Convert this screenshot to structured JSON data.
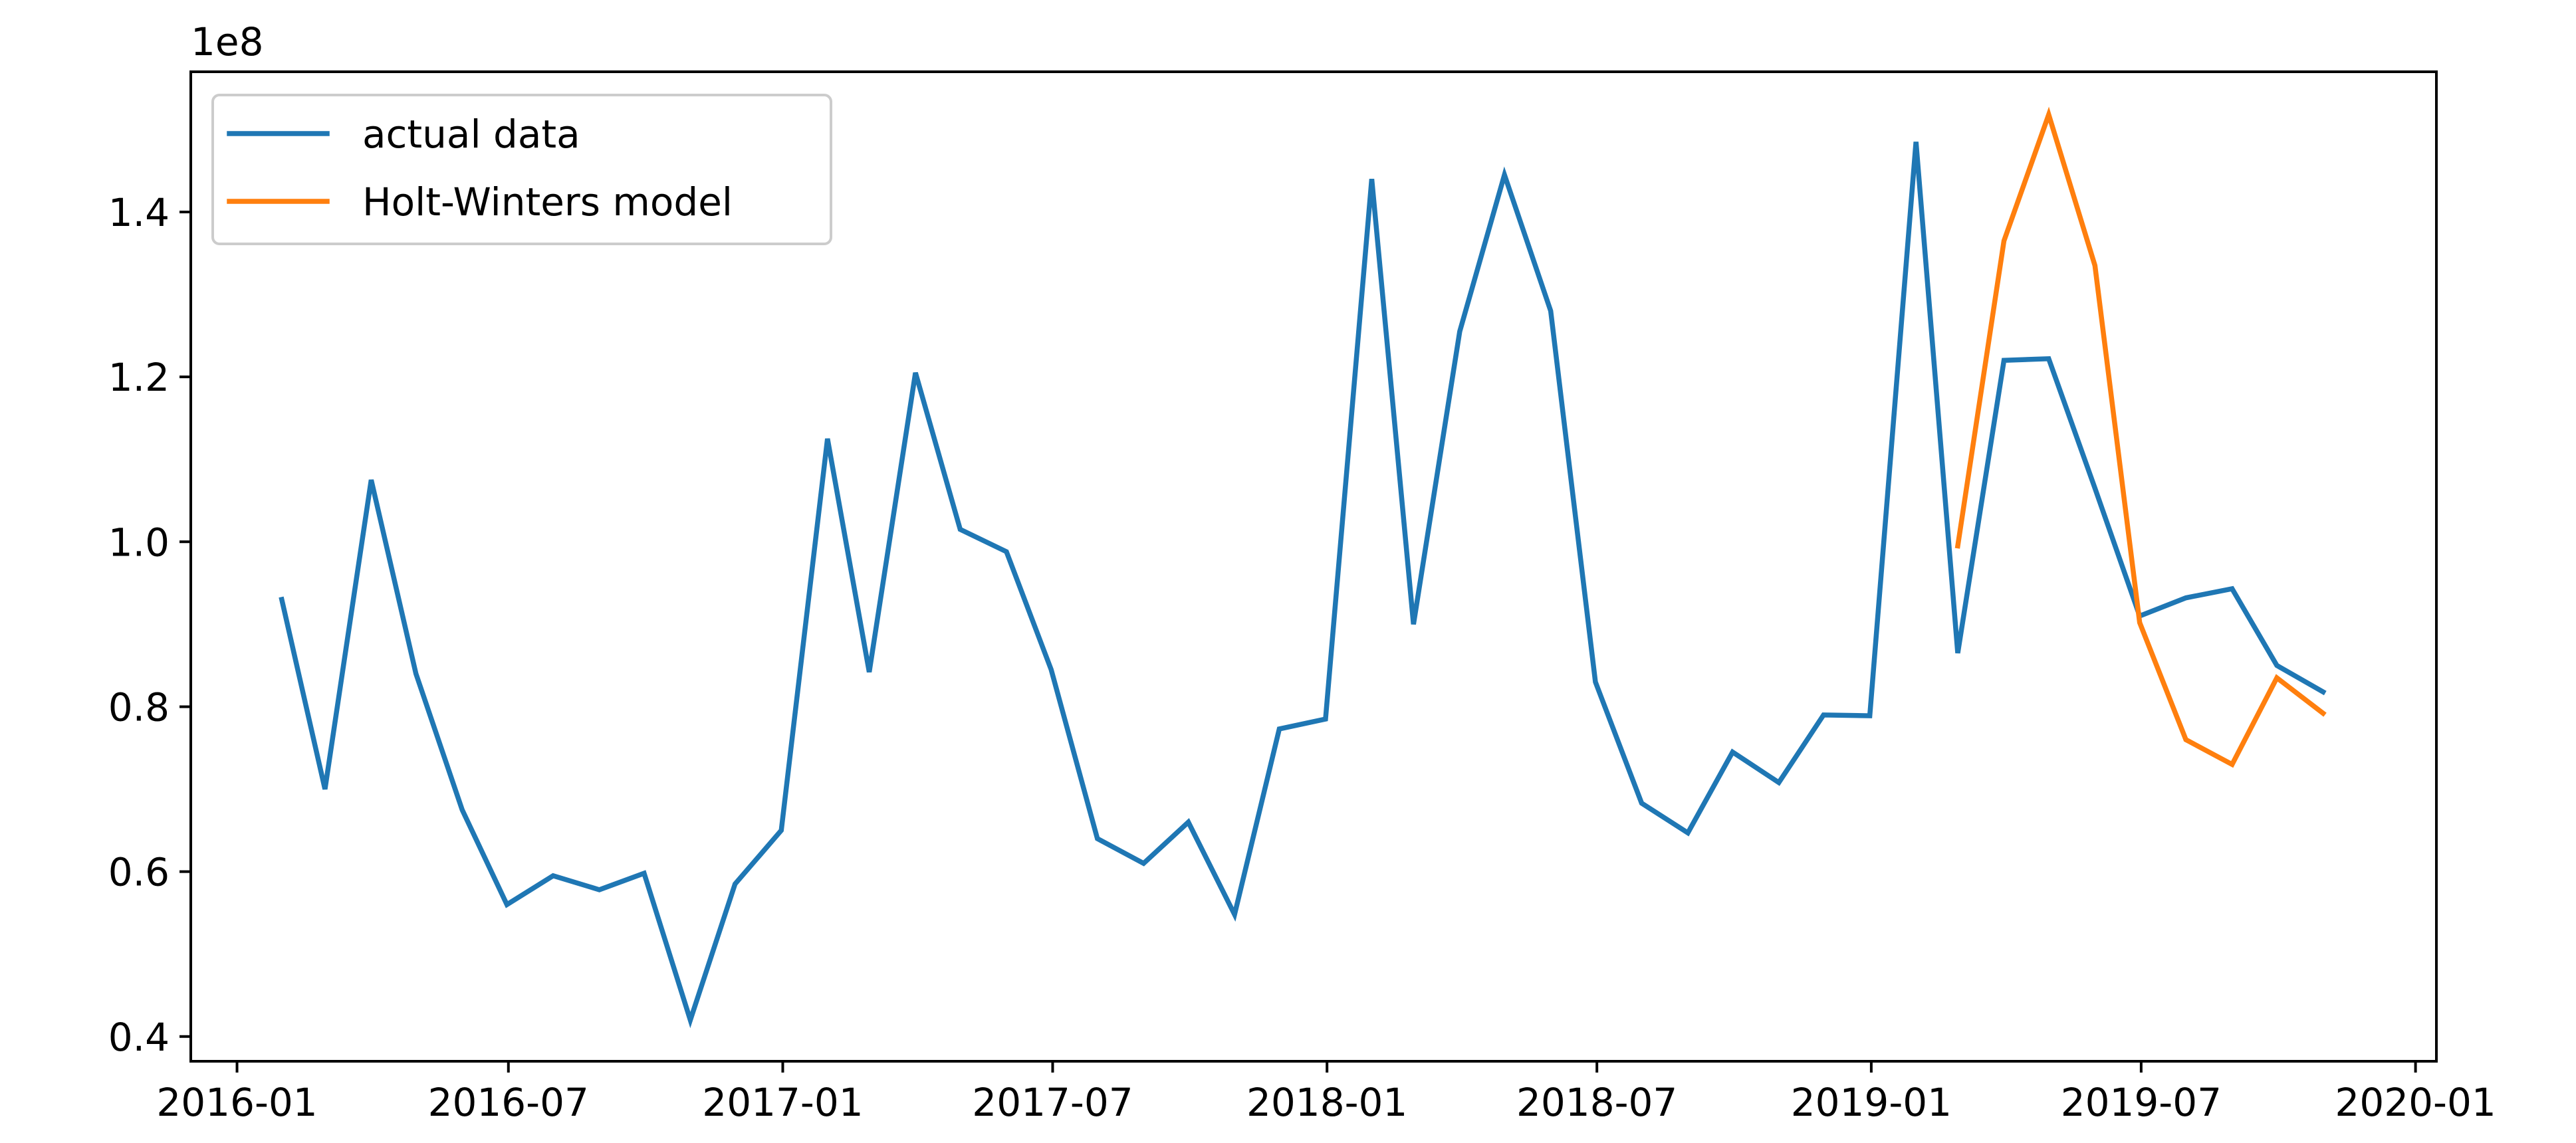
{
  "chart_data": {
    "type": "line",
    "xaxis": {
      "type": "date",
      "range": [
        "2015-12-01",
        "2020-01-15"
      ],
      "ticks": [
        "2016-01-01",
        "2016-07-01",
        "2017-01-01",
        "2017-07-01",
        "2018-01-01",
        "2018-07-01",
        "2019-01-01",
        "2019-07-01",
        "2020-01-01"
      ],
      "tick_labels": [
        "2016-01",
        "2016-07",
        "2017-01",
        "2017-07",
        "2018-01",
        "2018-07",
        "2019-01",
        "2019-07",
        "2020-01"
      ]
    },
    "yaxis": {
      "range": [
        0.37,
        1.57
      ],
      "ticks": [
        0.4,
        0.6,
        0.8,
        1.0,
        1.2,
        1.4
      ],
      "tick_labels": [
        "0.4",
        "0.6",
        "0.8",
        "1.0",
        "1.2",
        "1.4"
      ],
      "offset_label": "1e8"
    },
    "grid": false,
    "legend": {
      "position": "top-left"
    },
    "series": [
      {
        "name": "actual data",
        "color": "#1f77b4",
        "x": [
          "2016-01-31",
          "2016-02-29",
          "2016-03-31",
          "2016-04-30",
          "2016-05-31",
          "2016-06-30",
          "2016-07-31",
          "2016-08-31",
          "2016-09-30",
          "2016-10-31",
          "2016-11-30",
          "2016-12-31",
          "2017-01-31",
          "2017-02-28",
          "2017-03-31",
          "2017-04-30",
          "2017-05-31",
          "2017-06-30",
          "2017-07-31",
          "2017-08-31",
          "2017-09-30",
          "2017-10-31",
          "2017-11-30",
          "2017-12-31",
          "2018-01-31",
          "2018-02-28",
          "2018-03-31",
          "2018-04-30",
          "2018-05-31",
          "2018-06-30",
          "2018-07-31",
          "2018-08-31",
          "2018-09-30",
          "2018-10-31",
          "2018-11-30",
          "2018-12-31",
          "2019-01-31",
          "2019-02-28",
          "2019-03-31",
          "2019-04-30",
          "2019-05-31",
          "2019-06-30",
          "2019-07-31",
          "2019-08-31",
          "2019-09-30",
          "2019-10-31"
        ],
        "values": [
          0.93,
          0.7,
          1.075,
          0.84,
          0.675,
          0.56,
          0.595,
          0.578,
          0.598,
          0.42,
          0.585,
          0.65,
          1.125,
          0.842,
          1.205,
          1.015,
          0.988,
          0.845,
          0.64,
          0.61,
          0.66,
          0.548,
          0.773,
          0.785,
          1.44,
          0.9,
          1.255,
          1.445,
          1.28,
          0.83,
          0.683,
          0.647,
          0.745,
          0.708,
          0.79,
          0.789,
          1.485,
          0.865,
          1.22,
          1.222,
          1.065,
          0.91,
          0.932,
          0.943,
          0.85,
          0.818
        ]
      },
      {
        "name": "Holt-Winters model",
        "color": "#ff7f0e",
        "x": [
          "2019-02-28",
          "2019-03-31",
          "2019-04-30",
          "2019-05-31",
          "2019-06-30",
          "2019-07-31",
          "2019-08-31",
          "2019-09-30",
          "2019-10-31"
        ],
        "values": [
          0.995,
          1.365,
          1.518,
          1.335,
          0.902,
          0.76,
          0.73,
          0.835,
          0.792
        ]
      }
    ]
  }
}
